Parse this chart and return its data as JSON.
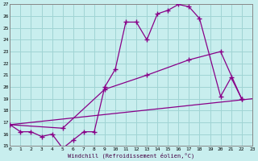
{
  "xlabel": "Windchill (Refroidissement éolien,°C)",
  "xlim": [
    0,
    23
  ],
  "ylim": [
    15,
    27
  ],
  "xticks": [
    0,
    1,
    2,
    3,
    4,
    5,
    6,
    7,
    8,
    9,
    10,
    11,
    12,
    13,
    14,
    15,
    16,
    17,
    18,
    19,
    20,
    21,
    22,
    23
  ],
  "yticks": [
    15,
    16,
    17,
    18,
    19,
    20,
    21,
    22,
    23,
    24,
    25,
    26,
    27
  ],
  "bg_color": "#c8eeee",
  "grid_color": "#a0d4d4",
  "line_color": "#880088",
  "line1_x": [
    0,
    1,
    2,
    3,
    4,
    5,
    6,
    7,
    8,
    9,
    10,
    11,
    12,
    13,
    14,
    15,
    16,
    17,
    18,
    20,
    21,
    22
  ],
  "line1_y": [
    16.8,
    16.2,
    16.2,
    15.8,
    16.0,
    14.8,
    15.5,
    16.2,
    16.2,
    20.0,
    21.5,
    25.5,
    25.5,
    24.0,
    26.2,
    26.5,
    27.0,
    26.8,
    25.8,
    19.2,
    20.8,
    19.0
  ],
  "line2_x": [
    0,
    23
  ],
  "line2_y": [
    16.8,
    19.0
  ],
  "line3_x": [
    0,
    5,
    9,
    13,
    17,
    20,
    22
  ],
  "line3_y": [
    16.8,
    16.5,
    19.8,
    21.0,
    22.3,
    23.0,
    19.0
  ]
}
